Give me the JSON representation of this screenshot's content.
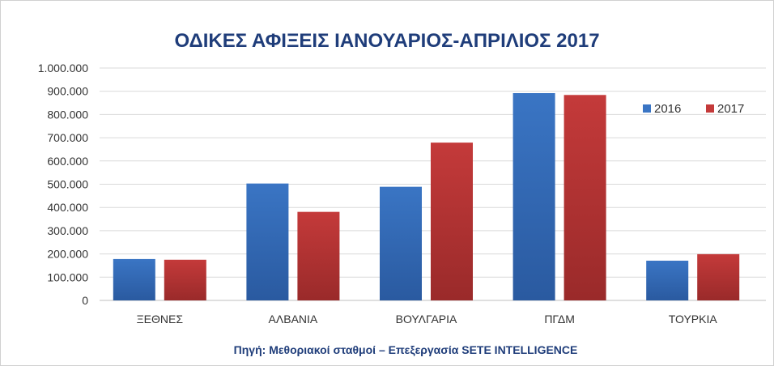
{
  "chart_data": {
    "type": "bar",
    "title": "ΟΔΙΚΕΣ ΑΦΙΞΕΙΣ ΙΑΝΟΥΑΡΙΟΣ-ΑΠΡΙΛΙΟΣ 2017",
    "categories": [
      "ΞΕΘΝΕΣ",
      "ΑΛΒΑΝΙΑ",
      "ΒΟΥΛΓΑΡΙΑ",
      "ΠΓΔΜ",
      "ΤΟΥΡΚΙΑ"
    ],
    "series": [
      {
        "name": "2016",
        "values": [
          178000,
          503000,
          489000,
          892000,
          171000
        ],
        "color": "#3a75c4"
      },
      {
        "name": "2017",
        "values": [
          175000,
          381000,
          679000,
          884000,
          199000
        ],
        "color": "#c43a3a"
      }
    ],
    "ylim": [
      0,
      1000000
    ],
    "yticks": [
      0,
      100000,
      200000,
      300000,
      400000,
      500000,
      600000,
      700000,
      800000,
      900000,
      1000000
    ],
    "ytick_labels": [
      "0",
      "100.000",
      "200.000",
      "300.000",
      "400.000",
      "500.000",
      "600.000",
      "700.000",
      "800.000",
      "900.000",
      "1.000.000"
    ],
    "xlabel": "",
    "ylabel": "",
    "grid": true,
    "legend_position": "right",
    "source": "Πηγή: Μεθοριακοί  σταθμοί – Επεξεργασία SETE INTELLIGENCE"
  }
}
